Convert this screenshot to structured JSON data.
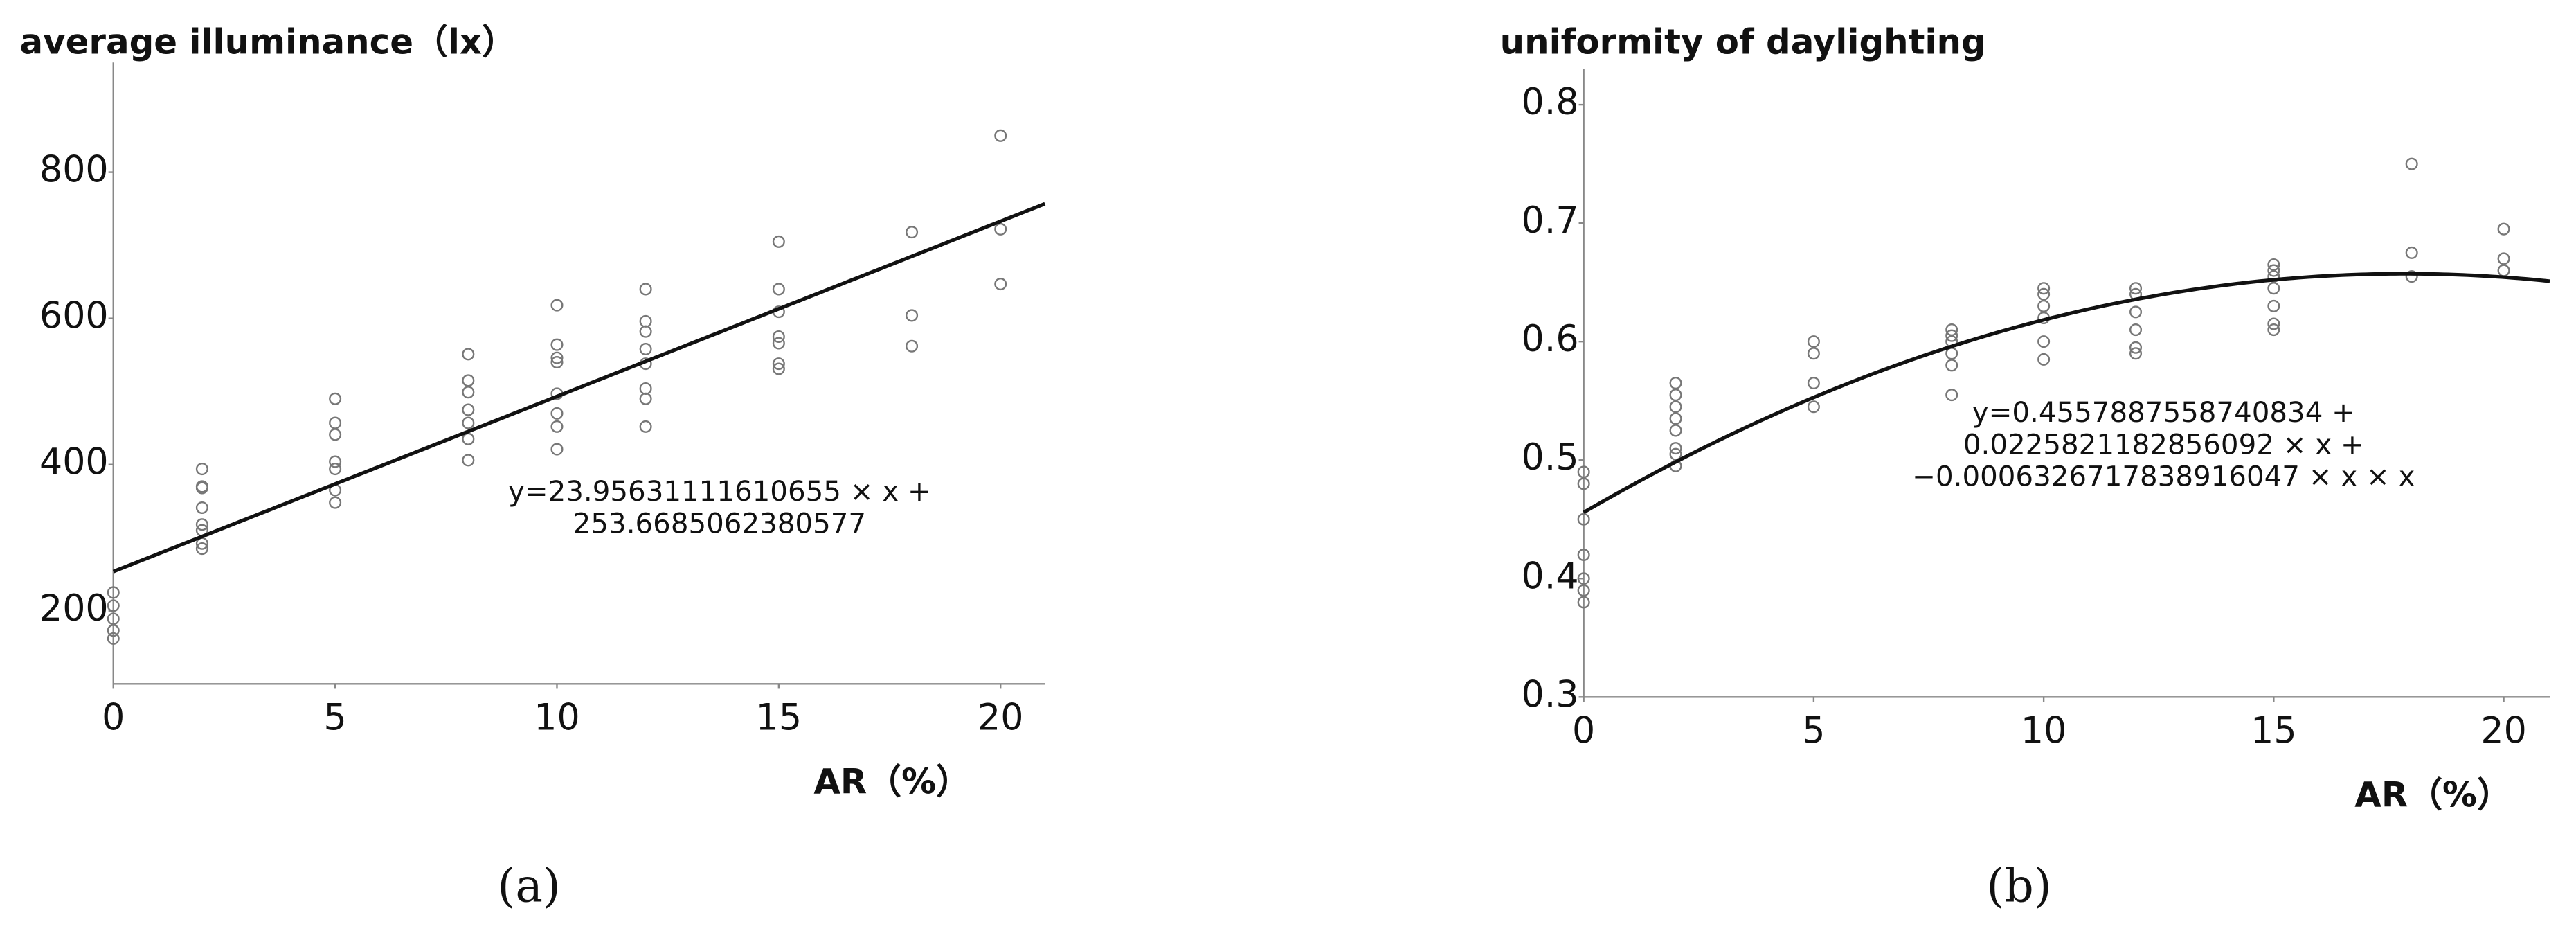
{
  "chart_data": [
    {
      "type": "scatter",
      "ylabel": "average illuminance（lx）",
      "xlabel": "AR（%）",
      "caption": "(a)",
      "annotation": [
        "y=23.95631111610655 × x +",
        "253.6685062380577"
      ],
      "fit": {
        "coefficients": [
          253.6685062380577,
          23.95631111610655
        ]
      },
      "x": [
        0,
        0,
        0,
        0,
        0,
        2,
        2,
        2,
        2,
        2,
        2,
        2,
        2,
        5,
        5,
        5,
        5,
        5,
        5,
        5,
        8,
        8,
        8,
        8,
        8,
        8,
        8,
        10,
        10,
        10,
        10,
        10,
        10,
        10,
        10,
        12,
        12,
        12,
        12,
        12,
        12,
        12,
        12,
        15,
        15,
        15,
        15,
        15,
        15,
        15,
        18,
        18,
        18,
        20,
        20,
        20
      ],
      "values": [
        162,
        173,
        189,
        207,
        225,
        394,
        370,
        368,
        341,
        318,
        310,
        292,
        285,
        490,
        457,
        441,
        404,
        394,
        365,
        348,
        551,
        515,
        499,
        475,
        457,
        435,
        406,
        618,
        564,
        546,
        540,
        497,
        470,
        452,
        421,
        640,
        596,
        582,
        558,
        538,
        504,
        490,
        452,
        705,
        640,
        609,
        575,
        566,
        538,
        531,
        718,
        604,
        562,
        850,
        722,
        647
      ],
      "xlim": [
        0,
        21
      ],
      "xticks": [
        0,
        5,
        10,
        15,
        20
      ],
      "ylim": [
        100,
        950
      ],
      "yticks": [
        200,
        400,
        600,
        800
      ]
    },
    {
      "type": "scatter",
      "ylabel": "uniformity of daylighting",
      "xlabel": "AR（%）",
      "caption": "(b)",
      "annotation": [
        "y=0.4557887558740834 +",
        "0.0225821182856092 × x +",
        "−0.0006326717838916047 × x × x"
      ],
      "fit": {
        "coefficients": [
          0.4557887558740834,
          0.0225821182856092,
          -0.0006326717838916047
        ]
      },
      "x": [
        0,
        0,
        0,
        0,
        0,
        0,
        0,
        2,
        2,
        2,
        2,
        2,
        2,
        2,
        2,
        5,
        5,
        5,
        5,
        8,
        8,
        8,
        8,
        8,
        8,
        10,
        10,
        10,
        10,
        10,
        10,
        12,
        12,
        12,
        12,
        12,
        12,
        15,
        15,
        15,
        15,
        15,
        15,
        15,
        18,
        18,
        18,
        20,
        20,
        20
      ],
      "values": [
        0.49,
        0.48,
        0.45,
        0.42,
        0.4,
        0.39,
        0.38,
        0.565,
        0.555,
        0.545,
        0.535,
        0.525,
        0.51,
        0.505,
        0.495,
        0.6,
        0.59,
        0.565,
        0.545,
        0.61,
        0.605,
        0.6,
        0.59,
        0.58,
        0.555,
        0.645,
        0.64,
        0.63,
        0.62,
        0.6,
        0.585,
        0.645,
        0.64,
        0.625,
        0.61,
        0.595,
        0.59,
        0.665,
        0.66,
        0.655,
        0.645,
        0.63,
        0.615,
        0.61,
        0.75,
        0.675,
        0.655,
        0.695,
        0.67,
        0.66
      ],
      "xlim": [
        0,
        21
      ],
      "xticks": [
        0,
        5,
        10,
        15,
        20
      ],
      "ylim": [
        0.3,
        0.83
      ],
      "yticks": [
        0.3,
        0.4,
        0.5,
        0.6,
        0.7,
        0.8
      ]
    }
  ]
}
